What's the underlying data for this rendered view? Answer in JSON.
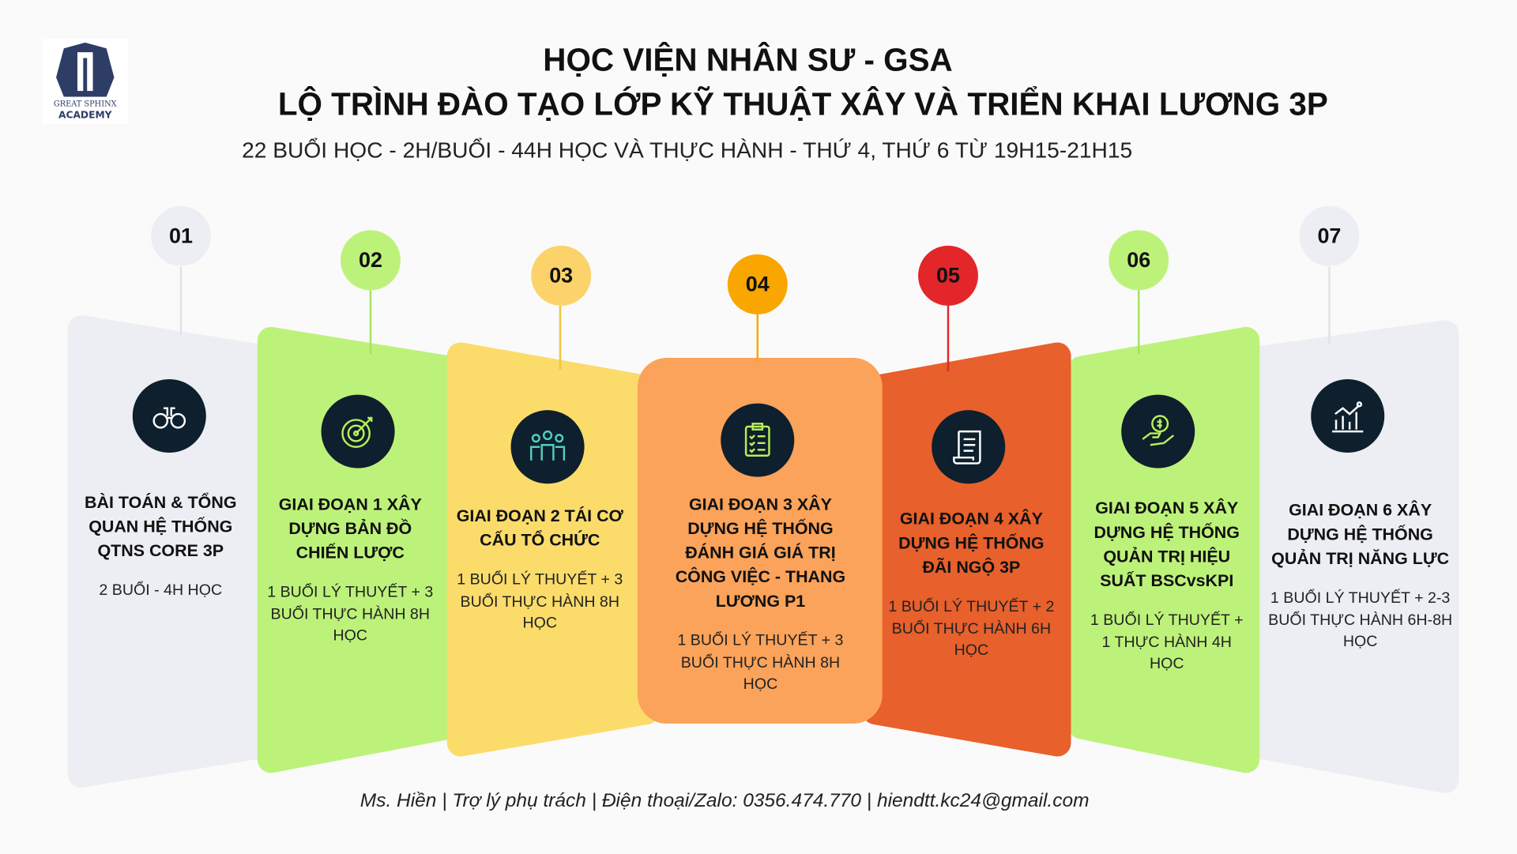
{
  "header": {
    "logo_text": [
      "GREAT SPHINX",
      "ACADEMY"
    ],
    "title_line1": "HỌC VIỆN NHÂN SƯ - GSA",
    "title_line2": "LỘ TRÌNH ĐÀO TẠO LỚP KỸ THUẬT XÂY VÀ TRIỂN KHAI LƯƠNG 3P",
    "subtitle": "22 BUỔI HỌC - 2H/BUỔI - 44H HỌC VÀ THỰC HÀNH - THỨ 4, THỨ 6 TỪ 19H15-21H15"
  },
  "steps": [
    {
      "number": "01",
      "icon": "binoculars-icon",
      "color": "#eceef3",
      "title": "BÀI TOÁN & TỔNG QUAN HỆ THỐNG QTNS CORE 3P",
      "body": "2 BUỔI - 4H HỌC"
    },
    {
      "number": "02",
      "icon": "target-icon",
      "color": "#bdf27a",
      "title": "GIAI ĐOẠN 1 XÂY DỰNG BẢN ĐỒ CHIẾN LƯỢC",
      "body": "1 BUỔI LÝ THUYẾT + 3 BUỔI THỰC HÀNH 8H HỌC"
    },
    {
      "number": "03",
      "icon": "team-icon",
      "color": "#fbdc6a",
      "title": "GIAI ĐOẠN 2 TÁI CƠ CẤU TỔ CHỨC",
      "body": "1 BUỔI LÝ THUYẾT + 3 BUỔI THỰC HÀNH 8H HỌC"
    },
    {
      "number": "04",
      "icon": "clipboard-checklist-icon",
      "color": "#fba35a",
      "title": "GIAI ĐOẠN 3 XÂY DỰNG HỆ THỐNG ĐÁNH GIÁ GIÁ TRỊ CÔNG VIỆC - THANG LƯƠNG P1",
      "body": "1 BUỔI LÝ THUYẾT + 3 BUỔI THỰC HÀNH 8H HỌC"
    },
    {
      "number": "05",
      "icon": "document-scroll-icon",
      "color": "#e8602b",
      "title": "GIAI ĐOẠN 4 XÂY DỰNG HỆ THỐNG ĐÃI NGỘ 3P",
      "body": "1 BUỔI LÝ THUYẾT + 2 BUỔI THỰC HÀNH 6H HỌC"
    },
    {
      "number": "06",
      "icon": "money-hand-icon",
      "color": "#bdf27a",
      "title": "GIAI ĐOẠN 5 XÂY DỰNG HỆ THỐNG QUẢN TRỊ HIỆU SUẤT BSCvsKPI",
      "body": "1 BUỔI LÝ THUYẾT + 1 THỰC HÀNH 4H HỌC"
    },
    {
      "number": "07",
      "icon": "chart-growth-icon",
      "color": "#eceef3",
      "title": "GIAI ĐOẠN 6 XÂY DỰNG HỆ THỐNG QUẢN TRỊ NĂNG LỰC",
      "body": "1  BUỔI LÝ THUYẾT + 2-3 BUỔI THỰC HÀNH 6H-8H HỌC"
    }
  ],
  "number_colors": [
    "#eceef3",
    "#bdf27a",
    "#fbd36a",
    "#f9a600",
    "#e3262a",
    "#bdf27a",
    "#eceef3"
  ],
  "footer": "Ms. Hiền | Trợ lý phụ trách | Điện thoại/Zalo: 0356.474.770 | hiendtt.kc24@gmail.com"
}
